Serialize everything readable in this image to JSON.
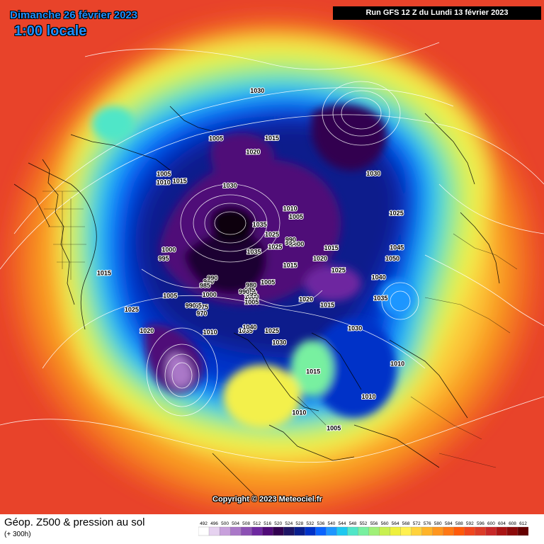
{
  "header": {
    "date": "Dimanche 26 février 2023",
    "local_time": "1:00 locale",
    "run_info": "Run GFS 12 Z du Lundi 13 février 2023"
  },
  "footer": {
    "parameter": "Géop. Z500 & pression au sol",
    "lead_time": "(+ 300h)",
    "copyright": "Copyright © 2023 Meteociel.fr"
  },
  "legend": {
    "values": [
      "492",
      "496",
      "500",
      "504",
      "508",
      "512",
      "516",
      "520",
      "524",
      "528",
      "532",
      "536",
      "540",
      "544",
      "548",
      "552",
      "556",
      "560",
      "564",
      "568",
      "572",
      "576",
      "580",
      "584",
      "588",
      "592",
      "596",
      "600",
      "604",
      "608",
      "612"
    ],
    "colors": [
      "#ffffff",
      "#e6d2f0",
      "#c8a0dc",
      "#aa78c8",
      "#8c50b4",
      "#6e28a0",
      "#500a78",
      "#320050",
      "#1e1464",
      "#0a1e8c",
      "#0032c8",
      "#0a64ff",
      "#1e96ff",
      "#1ec8f0",
      "#50e6c8",
      "#78f0a0",
      "#a0f078",
      "#c8f050",
      "#eef03c",
      "#fff050",
      "#ffd23c",
      "#ffb428",
      "#ff961e",
      "#ff7814",
      "#ff5a0a",
      "#f0461e",
      "#dc3c28",
      "#c82828",
      "#aa1414",
      "#8c0a0a",
      "#640000"
    ]
  },
  "pressure_labels": [
    {
      "text": "1035",
      "lon": -10,
      "lat": 58
    },
    {
      "text": "1040",
      "lon": -8,
      "lat": 60
    },
    {
      "text": "1010",
      "lon": -30,
      "lat": 50
    },
    {
      "text": "1005",
      "lon": -15,
      "lat": 70
    },
    {
      "text": "1000",
      "lon": -18,
      "lat": 72
    },
    {
      "text": "995",
      "lon": -20,
      "lat": 73
    },
    {
      "text": "985",
      "lon": -25,
      "lat": 74
    },
    {
      "text": "980",
      "lon": -28,
      "lat": 76
    },
    {
      "text": "990",
      "lon": -30,
      "lat": 72
    },
    {
      "text": "1020",
      "lon": 50,
      "lat": 68
    },
    {
      "text": "1015",
      "lon": 60,
      "lat": 60
    },
    {
      "text": "1025",
      "lon": 90,
      "lat": 62
    },
    {
      "text": "1020",
      "lon": 100,
      "lat": 70
    },
    {
      "text": "1015",
      "lon": 110,
      "lat": 65
    },
    {
      "text": "1000",
      "lon": 130,
      "lat": 78
    },
    {
      "text": "995",
      "lon": 140,
      "lat": 80
    },
    {
      "text": "990",
      "lon": 145,
      "lat": 79
    },
    {
      "text": "1005",
      "lon": 160,
      "lat": 70
    },
    {
      "text": "1010",
      "lon": 170,
      "lat": 68
    },
    {
      "text": "1025",
      "lon": -170,
      "lat": 80
    },
    {
      "text": "1035",
      "lon": -150,
      "lat": 75
    },
    {
      "text": "1025",
      "lon": 175,
      "lat": 85
    },
    {
      "text": "1035",
      "lon": -100,
      "lat": 82
    },
    {
      "text": "980",
      "lon": -60,
      "lat": 62
    },
    {
      "text": "985",
      "lon": -58,
      "lat": 60
    },
    {
      "text": "990",
      "lon": -62,
      "lat": 64
    },
    {
      "text": "1000",
      "lon": -50,
      "lat": 60
    },
    {
      "text": "1005",
      "lon": 0,
      "lat": 80
    },
    {
      "text": "1015",
      "lon": 80,
      "lat": 82
    },
    {
      "text": "1030",
      "lon": 15,
      "lat": 55
    },
    {
      "text": "1025",
      "lon": 10,
      "lat": 60
    },
    {
      "text": "1020",
      "lon": -50,
      "lat": 30
    },
    {
      "text": "1025",
      "lon": -60,
      "lat": 28
    },
    {
      "text": "1015",
      "lon": -75,
      "lat": 20
    },
    {
      "text": "1030",
      "lon": 60,
      "lat": 45
    },
    {
      "text": "1035",
      "lon": 80,
      "lat": 42
    },
    {
      "text": "1040",
      "lon": 90,
      "lat": 45
    },
    {
      "text": "1050",
      "lon": 100,
      "lat": 40
    },
    {
      "text": "1045",
      "lon": 105,
      "lat": 38
    },
    {
      "text": "1025",
      "lon": 120,
      "lat": 35
    },
    {
      "text": "1030",
      "lon": 140,
      "lat": 35
    },
    {
      "text": "1015",
      "lon": 30,
      "lat": 40
    },
    {
      "text": "1010",
      "lon": 20,
      "lat": 25
    },
    {
      "text": "1005",
      "lon": 30,
      "lat": 15
    },
    {
      "text": "1010",
      "lon": 45,
      "lat": 20
    },
    {
      "text": "1010",
      "lon": 60,
      "lat": 22
    },
    {
      "text": "1015",
      "lon": -120,
      "lat": 40
    },
    {
      "text": "1010",
      "lon": -115,
      "lat": 35
    },
    {
      "text": "1005",
      "lon": -118,
      "lat": 33
    },
    {
      "text": "1030",
      "lon": -140,
      "lat": 55
    },
    {
      "text": "1020",
      "lon": -160,
      "lat": 45
    },
    {
      "text": "1015",
      "lon": -170,
      "lat": 40
    },
    {
      "text": "1030",
      "lon": -165,
      "lat": 20
    },
    {
      "text": "1005",
      "lon": -145,
      "lat": 35
    },
    {
      "text": "995",
      "lon": -80,
      "lat": 45
    },
    {
      "text": "1000",
      "lon": -85,
      "lat": 47
    },
    {
      "text": "1005",
      "lon": -60,
      "lat": 45
    },
    {
      "text": "975",
      "lon": -45,
      "lat": 55
    },
    {
      "text": "965",
      "lon": -48,
      "lat": 53
    },
    {
      "text": "970",
      "lon": -42,
      "lat": 53
    },
    {
      "text": "990",
      "lon": -50,
      "lat": 51
    }
  ],
  "icons": {
    "map": "weather-map-icon"
  }
}
